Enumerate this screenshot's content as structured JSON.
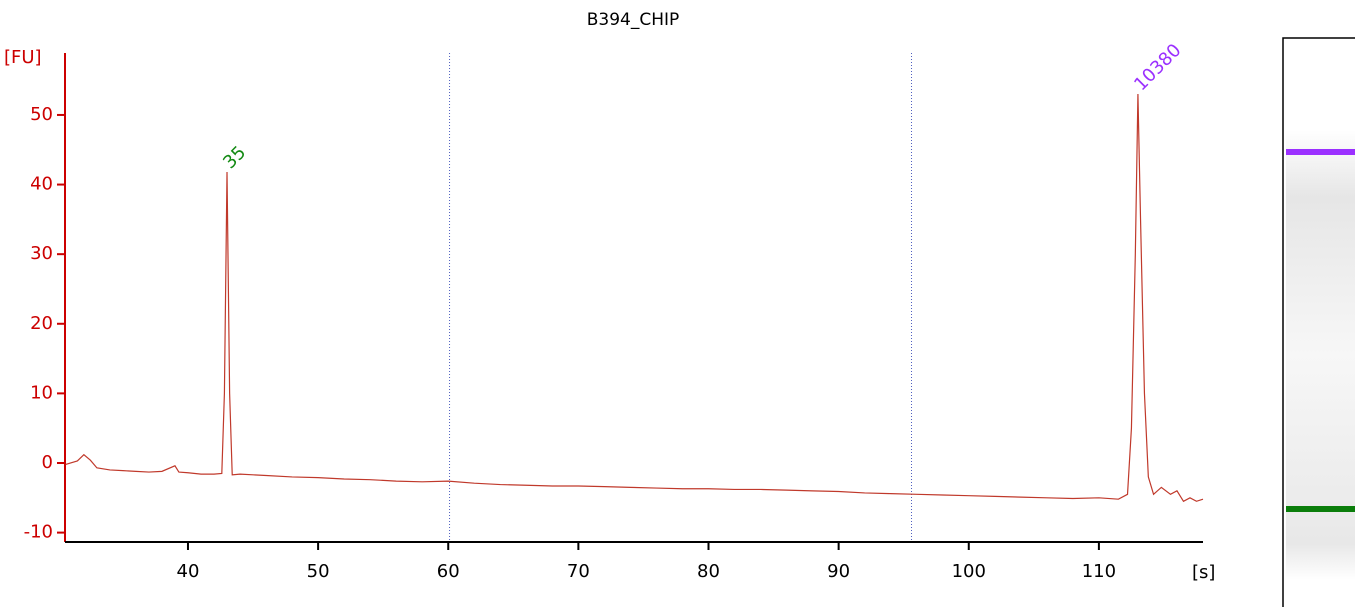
{
  "chart_data": {
    "type": "line",
    "title": "B394_CHIP",
    "y_label": "[FU]",
    "x_label": "[s]",
    "color": "#c0392b",
    "axis_color": "#cc0000",
    "x": [
      30.6,
      31.5,
      32,
      32.5,
      33,
      34,
      35,
      36,
      37,
      38,
      39,
      39.3,
      40,
      41,
      42,
      42.6,
      42.8,
      43.0,
      43.2,
      43.4,
      44,
      45,
      46,
      48,
      50,
      52,
      54,
      56,
      58,
      60,
      62,
      64,
      66,
      68,
      70,
      72,
      74,
      76,
      78,
      80,
      82,
      84,
      86,
      88,
      90,
      92,
      94,
      96,
      98,
      100,
      102,
      104,
      106,
      108,
      110,
      111.5,
      112.2,
      112.5,
      112.8,
      113.0,
      113.2,
      113.5,
      113.8,
      114.2,
      114.8,
      115.5,
      116,
      116.5,
      117,
      117.5,
      118
    ],
    "values": [
      -0.2,
      0.3,
      1.2,
      0.4,
      -0.7,
      -1.0,
      -1.1,
      -1.2,
      -1.3,
      -1.2,
      -0.4,
      -1.3,
      -1.4,
      -1.6,
      -1.6,
      -1.5,
      10,
      41.8,
      10,
      -1.7,
      -1.6,
      -1.7,
      -1.8,
      -2.0,
      -2.1,
      -2.3,
      -2.4,
      -2.6,
      -2.7,
      -2.6,
      -2.9,
      -3.1,
      -3.2,
      -3.3,
      -3.3,
      -3.4,
      -3.5,
      -3.6,
      -3.7,
      -3.7,
      -3.8,
      -3.8,
      -3.9,
      -4.0,
      -4.1,
      -4.3,
      -4.4,
      -4.5,
      -4.6,
      -4.7,
      -4.8,
      -4.9,
      -5.0,
      -5.1,
      -5.0,
      -5.2,
      -4.5,
      5,
      30,
      53,
      35,
      10,
      -2,
      -4.5,
      -3.5,
      -4.5,
      -4.0,
      -5.5,
      -5.0,
      -5.5,
      -5.2
    ],
    "xlim": [
      30.55,
      118
    ],
    "ylim": [
      -11.35,
      58.9
    ],
    "xticks": [
      40,
      50,
      60,
      70,
      80,
      90,
      100,
      110
    ],
    "yticks": [
      -10,
      0,
      10,
      20,
      30,
      40,
      50
    ],
    "vlines": [
      60.1,
      95.6
    ],
    "annotations": [
      {
        "text": "35",
        "x": 43.0,
        "y": 41.8,
        "color": "#138a13"
      },
      {
        "text": "10380",
        "x": 113.0,
        "y": 53,
        "color": "#9b30ff"
      }
    ]
  }
}
